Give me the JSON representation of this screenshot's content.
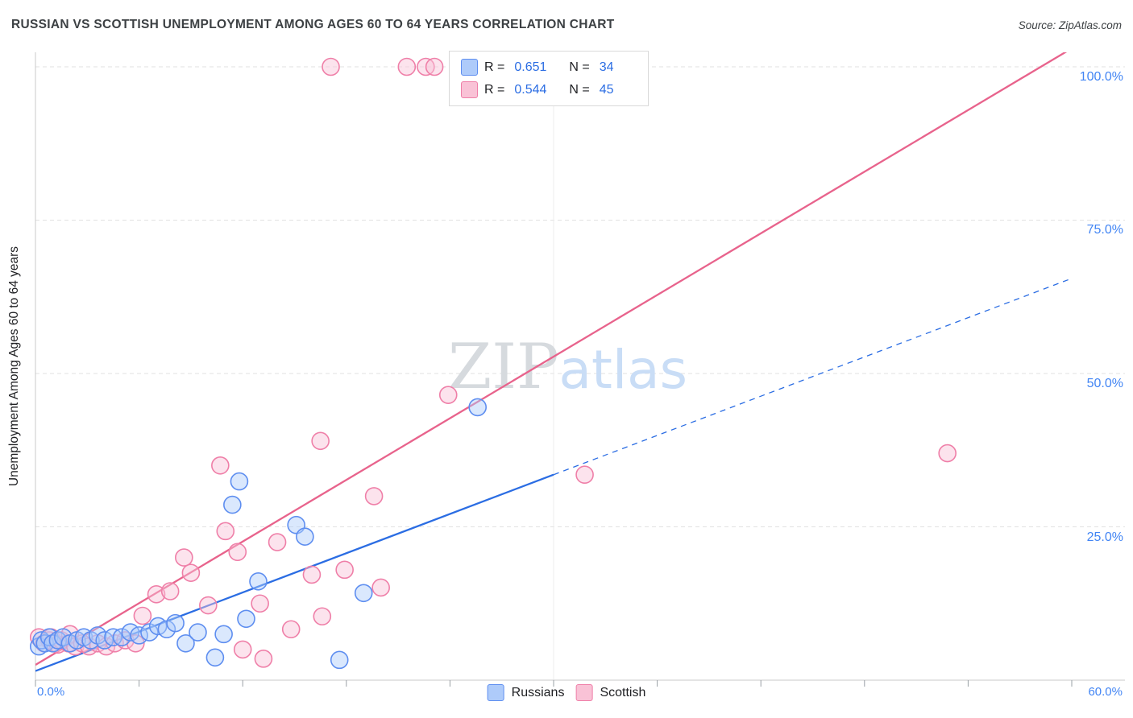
{
  "header": {
    "title": "RUSSIAN VS SCOTTISH UNEMPLOYMENT AMONG AGES 60 TO 64 YEARS CORRELATION CHART",
    "source": "Source: ZipAtlas.com"
  },
  "legend_box": {
    "r_prefix": "R =",
    "n_prefix": "N ="
  },
  "chart_data": {
    "type": "scatter",
    "title": "RUSSIAN VS SCOTTISH UNEMPLOYMENT AMONG AGES 60 TO 64 YEARS CORRELATION CHART",
    "xlabel": "",
    "ylabel": "Unemployment Among Ages 60 to 64 years",
    "xlim": [
      0,
      60
    ],
    "ylim": [
      0,
      103.5
    ],
    "grid": "horizontal-dashed",
    "x_tick_labels": [
      "0.0%",
      "60.0%"
    ],
    "y_tick_labels": [
      "100.0%",
      "75.0%",
      "50.0%",
      "25.0%"
    ],
    "y_tick_values": [
      100,
      75,
      50,
      25
    ],
    "x_minor_tick_step_pct": 6,
    "watermark": {
      "zip": "ZIP",
      "atlas": "atlas",
      "zip_color": "#d6dade",
      "atlas_color": "#c9ddf6"
    },
    "series": [
      {
        "name": "Russians",
        "R": "0.651",
        "N": "34",
        "color": "#5e8ef0",
        "fill": "#aecbfa",
        "points": [
          [
            0.2,
            5.5
          ],
          [
            0.35,
            6.5
          ],
          [
            0.55,
            6
          ],
          [
            0.8,
            7
          ],
          [
            1.0,
            6
          ],
          [
            1.3,
            6.5
          ],
          [
            1.6,
            7
          ],
          [
            2.0,
            6
          ],
          [
            2.4,
            6.5
          ],
          [
            2.8,
            7
          ],
          [
            3.2,
            6.5
          ],
          [
            3.6,
            7.3
          ],
          [
            4.0,
            6.5
          ],
          [
            4.5,
            7
          ],
          [
            5.0,
            7
          ],
          [
            5.5,
            7.8
          ],
          [
            6.0,
            7.3
          ],
          [
            6.6,
            7.8
          ],
          [
            7.1,
            8.8
          ],
          [
            7.6,
            8.3
          ],
          [
            8.1,
            9.3
          ],
          [
            8.7,
            6
          ],
          [
            9.4,
            7.8
          ],
          [
            10.4,
            3.7
          ],
          [
            10.9,
            7.5
          ],
          [
            11.4,
            28.6
          ],
          [
            11.8,
            32.4
          ],
          [
            12.2,
            10
          ],
          [
            12.9,
            16.1
          ],
          [
            15.1,
            25.3
          ],
          [
            15.6,
            23.4
          ],
          [
            17.6,
            3.3
          ],
          [
            19.0,
            14.2
          ],
          [
            25.6,
            44.5
          ]
        ]
      },
      {
        "name": "Scottish",
        "R": "0.544",
        "N": "45",
        "color": "#ef7fa8",
        "fill": "#f9c2d6",
        "points": [
          [
            0.2,
            7
          ],
          [
            0.5,
            6
          ],
          [
            0.8,
            6.5
          ],
          [
            0.9,
            7
          ],
          [
            1.1,
            6
          ],
          [
            1.3,
            5.8
          ],
          [
            1.5,
            6.5
          ],
          [
            1.9,
            6
          ],
          [
            2.0,
            7.5
          ],
          [
            2.3,
            5.5
          ],
          [
            2.7,
            6
          ],
          [
            3.1,
            5.5
          ],
          [
            3.6,
            6
          ],
          [
            4.1,
            5.5
          ],
          [
            4.6,
            6
          ],
          [
            5.2,
            6.5
          ],
          [
            5.8,
            6
          ],
          [
            6.2,
            10.5
          ],
          [
            7.0,
            14
          ],
          [
            7.8,
            14.5
          ],
          [
            8.6,
            20
          ],
          [
            9.0,
            17.5
          ],
          [
            10.0,
            12.2
          ],
          [
            10.7,
            35
          ],
          [
            11.0,
            24.3
          ],
          [
            11.7,
            20.9
          ],
          [
            12.0,
            5
          ],
          [
            13.0,
            12.5
          ],
          [
            13.2,
            3.5
          ],
          [
            14.0,
            22.5
          ],
          [
            14.8,
            8.3
          ],
          [
            16.0,
            17.2
          ],
          [
            16.5,
            39
          ],
          [
            16.6,
            10.4
          ],
          [
            17.1,
            100
          ],
          [
            17.9,
            18
          ],
          [
            19.6,
            30
          ],
          [
            20.0,
            15.1
          ],
          [
            21.5,
            100
          ],
          [
            22.6,
            100
          ],
          [
            23.1,
            100
          ],
          [
            23.9,
            46.5
          ],
          [
            24.6,
            100
          ],
          [
            31.8,
            33.5
          ],
          [
            52.8,
            37
          ]
        ]
      }
    ],
    "trend_lines": [
      {
        "series": "Russians",
        "color": "#2b6de3",
        "solid_from": [
          0,
          1.5
        ],
        "solid_to": [
          30,
          33.5
        ],
        "dashed_to": [
          60,
          65.5
        ]
      },
      {
        "series": "Scottish",
        "color": "#e8638c",
        "solid_from": [
          0,
          2.5
        ],
        "solid_to": [
          60,
          103
        ]
      }
    ]
  }
}
